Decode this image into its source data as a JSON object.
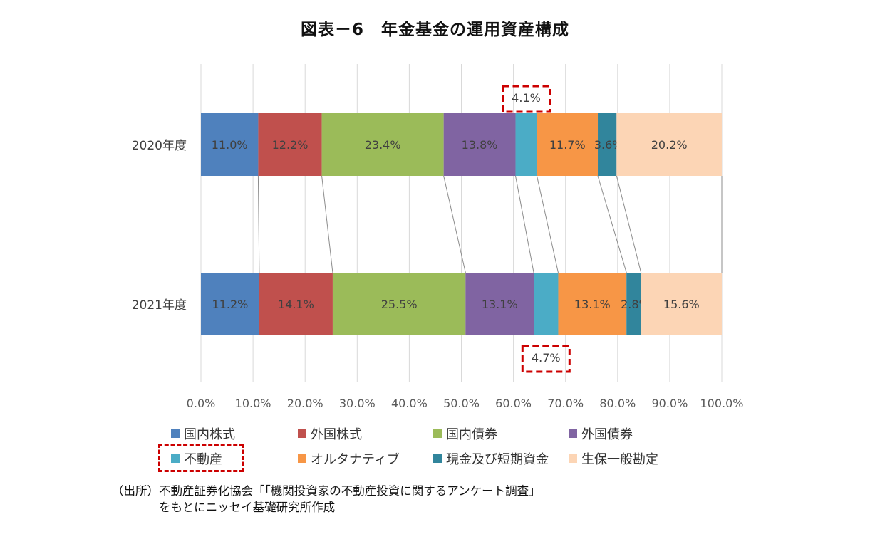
{
  "chart_data": {
    "type": "stacked-bar-horizontal",
    "title": "図表－6　年金基金の運用資産構成",
    "categories": [
      "2020年度",
      "2021年度"
    ],
    "xlim": [
      0,
      100
    ],
    "xticks": [
      "0.0%",
      "10.0%",
      "20.0%",
      "30.0%",
      "40.0%",
      "50.0%",
      "60.0%",
      "70.0%",
      "80.0%",
      "90.0%",
      "100.0%"
    ],
    "grid": true,
    "legend_position": "bottom",
    "series": [
      {
        "name": "国内株式",
        "color": "#4f81bd",
        "values": [
          11.0,
          11.2
        ],
        "labels": [
          "11.0%",
          "11.2%"
        ]
      },
      {
        "name": "外国株式",
        "color": "#c0504d",
        "values": [
          12.2,
          14.1
        ],
        "labels": [
          "12.2%",
          "14.1%"
        ]
      },
      {
        "name": "国内債券",
        "color": "#9bbb59",
        "values": [
          23.4,
          25.5
        ],
        "labels": [
          "23.4%",
          "25.5%"
        ]
      },
      {
        "name": "外国債券",
        "color": "#8064a2",
        "values": [
          13.8,
          13.1
        ],
        "labels": [
          "13.8%",
          "13.1%"
        ]
      },
      {
        "name": "不動産",
        "color": "#4bacc6",
        "values": [
          4.1,
          4.7
        ],
        "labels": [
          "4.1%",
          "4.7%"
        ]
      },
      {
        "name": "オルタナティブ",
        "color": "#f79646",
        "values": [
          11.7,
          13.1
        ],
        "labels": [
          "11.7%",
          "13.1%"
        ]
      },
      {
        "name": "現金及び短期資金",
        "color": "#31859c",
        "values": [
          3.6,
          2.8
        ],
        "labels": [
          "3.6%",
          "2.8%"
        ]
      },
      {
        "name": "生保一般勘定",
        "color": "#fcd5b5",
        "values": [
          20.2,
          15.6
        ],
        "labels": [
          "20.2%",
          "15.6%"
        ]
      }
    ],
    "highlighted_series": "不動産",
    "highlight_color": "#cc0000"
  },
  "source": {
    "line1": "（出所）不動産証券化協会「「機関投資家の不動産投資に関するアンケート調査」",
    "line2": "をもとにニッセイ基礎研究所作成"
  }
}
